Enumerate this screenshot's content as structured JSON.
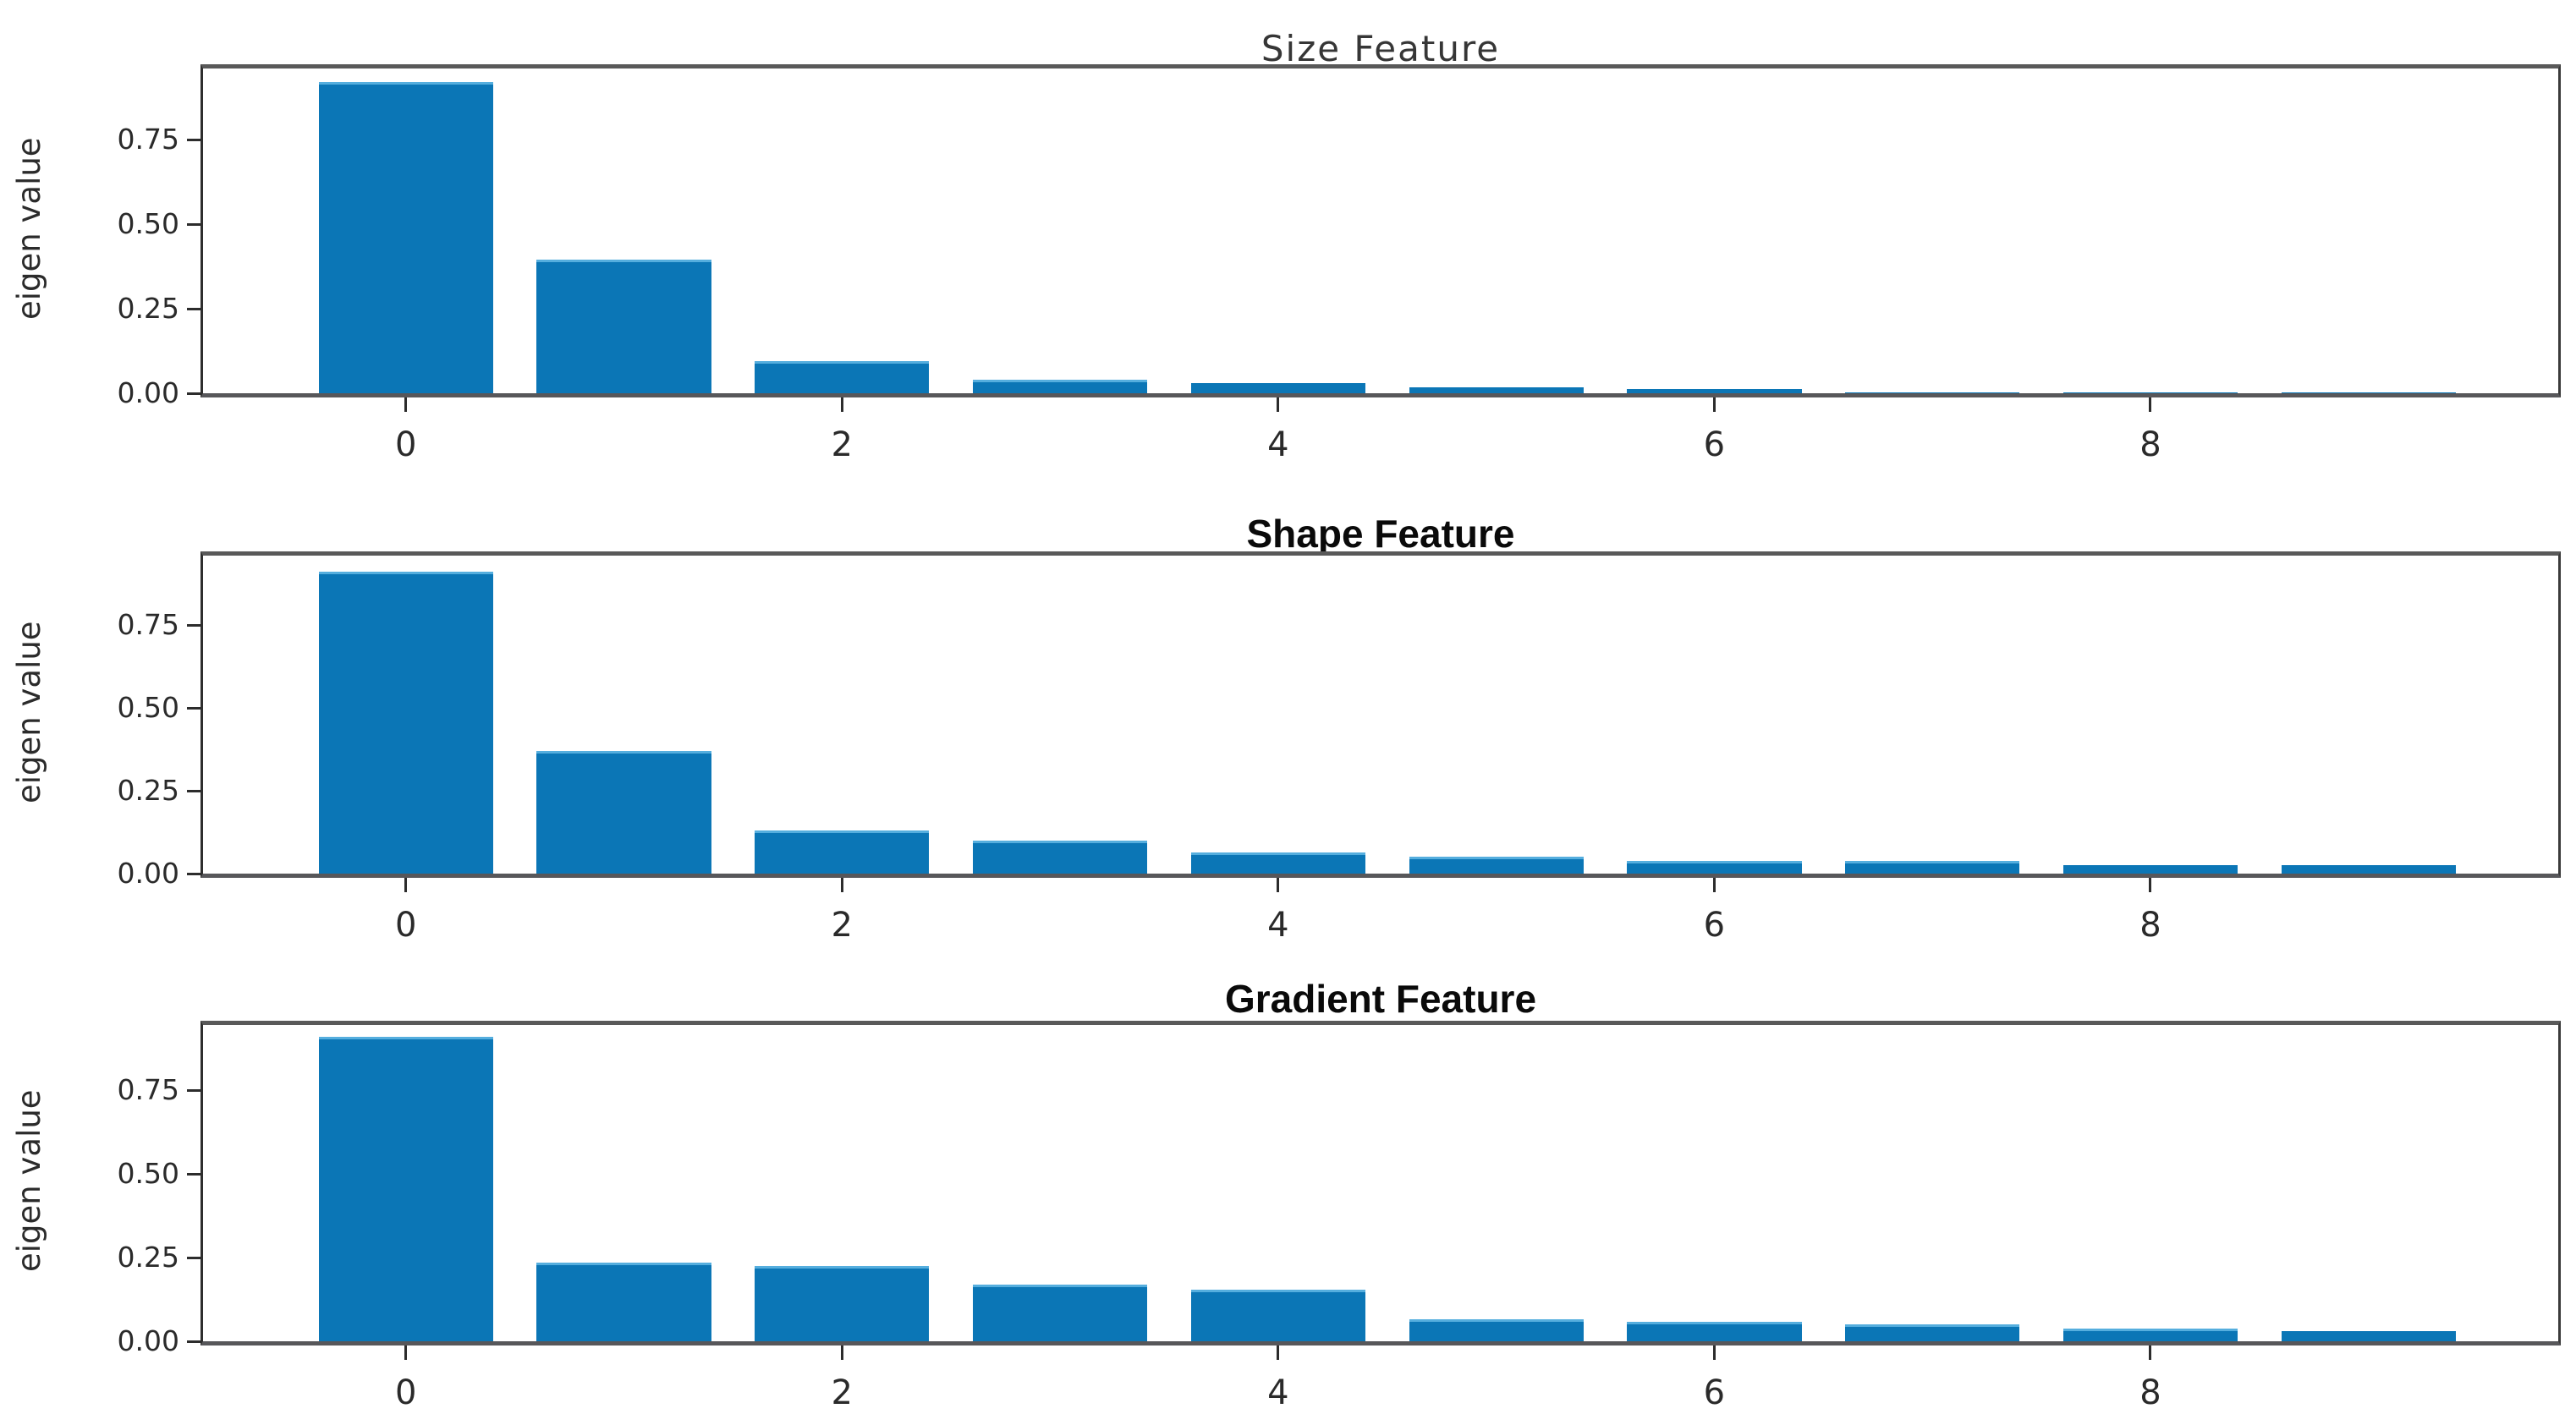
{
  "figure": {
    "background": "#ffffff",
    "bar_color": "#0b76b6",
    "bar_top_edge_color": "#55aede",
    "axis_color": "#595959",
    "text_color": "#2a2a2a"
  },
  "chart_data": [
    {
      "type": "bar",
      "title": "Size Feature",
      "title_weight": "regular",
      "ylabel": "eigen value",
      "xlabel": "",
      "categories": [
        0,
        1,
        2,
        3,
        4,
        5,
        6,
        7,
        8,
        9
      ],
      "values": [
        0.92,
        0.395,
        0.095,
        0.04,
        0.03,
        0.018,
        0.012,
        0.003,
        0.002,
        0.002
      ],
      "xticks": [
        "0",
        "2",
        "4",
        "6",
        "8"
      ],
      "yticks": [
        "0.00",
        "0.25",
        "0.50",
        "0.75"
      ],
      "ylim": [
        0,
        0.96
      ],
      "xlim": [
        -0.93,
        9.87
      ],
      "grid": false,
      "legend": null
    },
    {
      "type": "bar",
      "title": "Shape Feature",
      "title_weight": "bold",
      "ylabel": "eigen value",
      "xlabel": "",
      "categories": [
        0,
        1,
        2,
        3,
        4,
        5,
        6,
        7,
        8,
        9
      ],
      "values": [
        0.91,
        0.37,
        0.13,
        0.1,
        0.065,
        0.05,
        0.038,
        0.038,
        0.026,
        0.026
      ],
      "xticks": [
        "0",
        "2",
        "4",
        "6",
        "8"
      ],
      "yticks": [
        "0.00",
        "0.25",
        "0.50",
        "0.75"
      ],
      "ylim": [
        0,
        0.96
      ],
      "xlim": [
        -0.93,
        9.87
      ],
      "grid": false,
      "legend": null
    },
    {
      "type": "bar",
      "title": "Gradient Feature",
      "title_weight": "bold",
      "ylabel": "eigen value",
      "xlabel": "",
      "categories": [
        0,
        1,
        2,
        3,
        4,
        5,
        6,
        7,
        8,
        9
      ],
      "values": [
        0.91,
        0.235,
        0.225,
        0.17,
        0.155,
        0.065,
        0.058,
        0.05,
        0.038,
        0.03
      ],
      "xticks": [
        "0",
        "2",
        "4",
        "6",
        "8"
      ],
      "yticks": [
        "0.00",
        "0.25",
        "0.50",
        "0.75"
      ],
      "ylim": [
        0,
        0.96
      ],
      "xlim": [
        -0.93,
        9.87
      ],
      "grid": false,
      "legend": null
    }
  ]
}
